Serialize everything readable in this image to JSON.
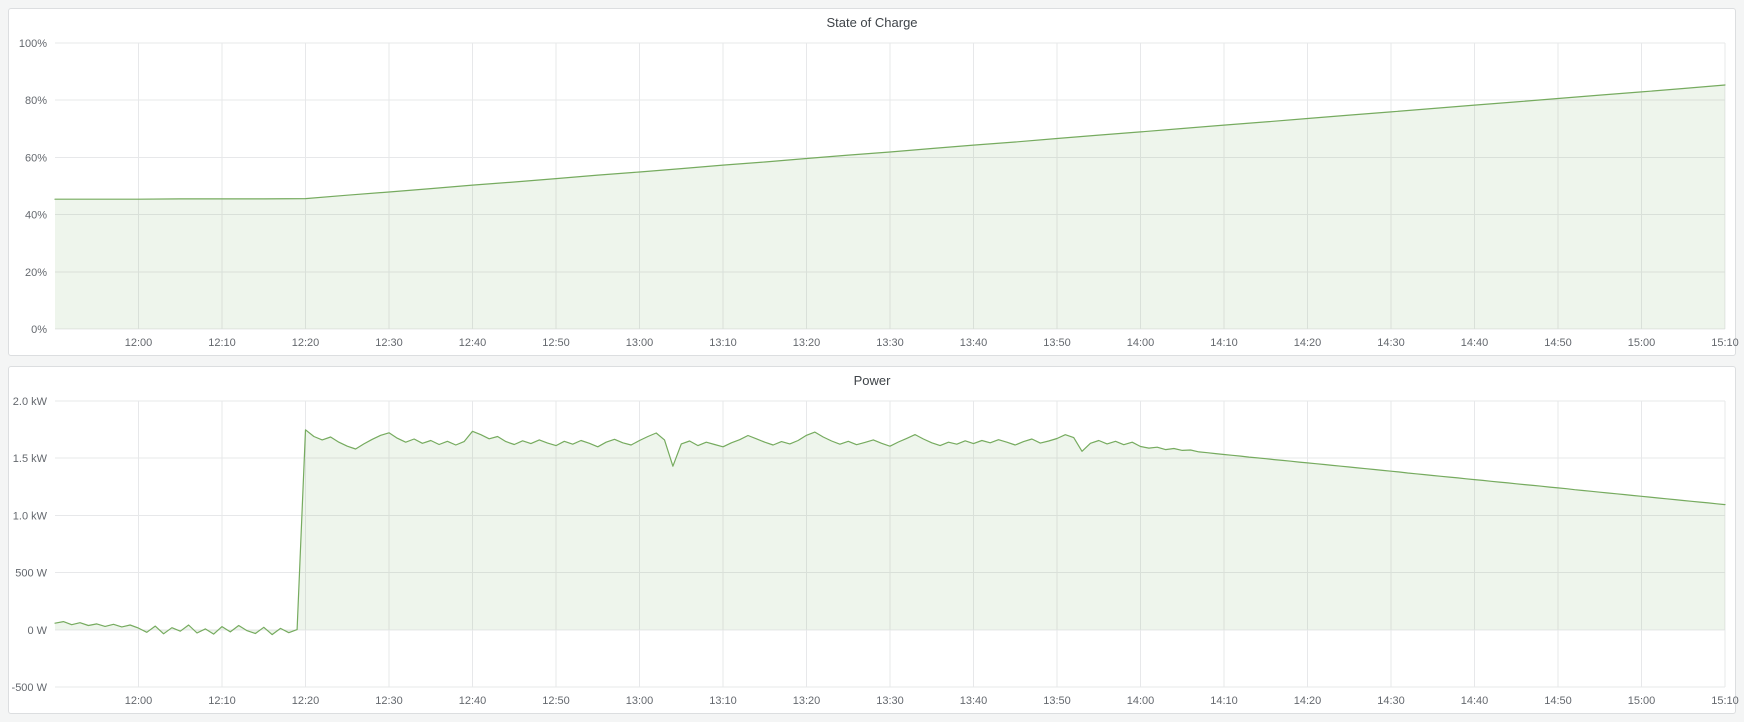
{
  "page": {
    "background_color": "#f4f5f5",
    "panel_background": "#ffffff",
    "panel_border_color": "#dcdee0"
  },
  "panels": [
    {
      "title": "State of Charge"
    },
    {
      "title": "Power"
    }
  ],
  "chart_data": [
    {
      "type": "area",
      "title": "State of Charge",
      "xlabel": "",
      "ylabel": "",
      "unit": "%",
      "legend": "none",
      "grid": true,
      "ylim": [
        0,
        100
      ],
      "y_ticks": [
        {
          "value": 0,
          "label": "0%"
        },
        {
          "value": 20,
          "label": "20%"
        },
        {
          "value": 40,
          "label": "40%"
        },
        {
          "value": 60,
          "label": "60%"
        },
        {
          "value": 80,
          "label": "80%"
        },
        {
          "value": 100,
          "label": "100%"
        }
      ],
      "x_start": "11:50",
      "x_end": "15:10",
      "x_span_minutes": 200,
      "x_step_minutes": 5,
      "x_tick_first_min": 10,
      "x_tick_interval_min": 10,
      "x_tick_labels": [
        "12:00",
        "12:10",
        "12:20",
        "12:30",
        "12:40",
        "12:50",
        "13:00",
        "13:10",
        "13:20",
        "13:30",
        "13:40",
        "13:50",
        "14:00",
        "14:10",
        "14:20",
        "14:30",
        "14:40",
        "14:50",
        "15:00",
        "15:10"
      ],
      "values": [
        45.4,
        45.4,
        45.4,
        45.5,
        45.5,
        45.5,
        45.6,
        46.8,
        47.9,
        49.1,
        50.3,
        51.4,
        52.6,
        53.8,
        54.9,
        56.1,
        57.3,
        58.4,
        59.6,
        60.8,
        61.9,
        63.1,
        64.3,
        65.4,
        66.6,
        67.8,
        68.9,
        70.1,
        71.3,
        72.4,
        73.6,
        74.8,
        75.9,
        77.1,
        78.3,
        79.4,
        80.6,
        81.8,
        82.9,
        84.1,
        85.3
      ],
      "line_color": "#76ab5f",
      "fill_color": "rgba(118,171,95,0.12)",
      "grid_color": "#e7e8ea",
      "axis_text_color": "#64686e"
    },
    {
      "type": "area",
      "title": "Power",
      "xlabel": "",
      "ylabel": "",
      "unit": "W",
      "legend": "none",
      "grid": true,
      "ylim": [
        -500,
        2000
      ],
      "y_ticks": [
        {
          "value": -500,
          "label": "-500 W"
        },
        {
          "value": 0,
          "label": "0 W"
        },
        {
          "value": 500,
          "label": "500 W"
        },
        {
          "value": 1000,
          "label": "1.0 kW"
        },
        {
          "value": 1500,
          "label": "1.5 kW"
        },
        {
          "value": 2000,
          "label": "2.0 kW"
        }
      ],
      "x_start": "11:50",
      "x_end": "15:10",
      "x_span_minutes": 200,
      "x_step_minutes": 1,
      "x_tick_first_min": 10,
      "x_tick_interval_min": 10,
      "x_tick_labels": [
        "12:00",
        "12:10",
        "12:20",
        "12:30",
        "12:40",
        "12:50",
        "13:00",
        "13:10",
        "13:20",
        "13:30",
        "13:40",
        "13:50",
        "14:00",
        "14:10",
        "14:20",
        "14:30",
        "14:40",
        "14:50",
        "15:00",
        "15:10"
      ],
      "values": [
        58,
        72,
        45,
        62,
        38,
        52,
        30,
        48,
        25,
        42,
        15,
        -22,
        32,
        -35,
        18,
        -12,
        42,
        -28,
        8,
        -38,
        28,
        -18,
        38,
        -8,
        -32,
        22,
        -42,
        12,
        -25,
        2,
        1748,
        1690,
        1660,
        1685,
        1640,
        1605,
        1580,
        1625,
        1665,
        1700,
        1722,
        1675,
        1640,
        1668,
        1630,
        1655,
        1620,
        1648,
        1615,
        1645,
        1735,
        1705,
        1670,
        1690,
        1645,
        1620,
        1652,
        1628,
        1660,
        1632,
        1610,
        1648,
        1622,
        1655,
        1630,
        1600,
        1640,
        1665,
        1635,
        1615,
        1655,
        1690,
        1720,
        1660,
        1430,
        1625,
        1650,
        1610,
        1640,
        1620,
        1600,
        1635,
        1662,
        1698,
        1670,
        1640,
        1615,
        1645,
        1625,
        1655,
        1700,
        1728,
        1685,
        1650,
        1622,
        1648,
        1618,
        1638,
        1660,
        1630,
        1605,
        1642,
        1673,
        1706,
        1668,
        1635,
        1610,
        1640,
        1622,
        1652,
        1628,
        1655,
        1635,
        1662,
        1640,
        1615,
        1645,
        1668,
        1632,
        1650,
        1672,
        1705,
        1680,
        1560,
        1630,
        1655,
        1625,
        1648,
        1618,
        1640,
        1602,
        1588,
        1596,
        1575,
        1585,
        1568,
        1572,
        1555,
        1548,
        1540,
        1532,
        1525,
        1518,
        1510,
        1503,
        1496,
        1488,
        1481,
        1474,
        1466,
        1459,
        1452,
        1445,
        1437,
        1430,
        1423,
        1415,
        1408,
        1401,
        1393,
        1386,
        1379,
        1371,
        1364,
        1357,
        1349,
        1342,
        1335,
        1328,
        1320,
        1313,
        1306,
        1298,
        1291,
        1284,
        1276,
        1269,
        1262,
        1255,
        1247,
        1240,
        1233,
        1225,
        1218,
        1211,
        1203,
        1196,
        1189,
        1182,
        1174,
        1167,
        1160,
        1152,
        1145,
        1138,
        1130,
        1123,
        1116,
        1109,
        1101,
        1094
      ],
      "line_color": "#76ab5f",
      "fill_color": "rgba(118,171,95,0.12)",
      "grid_color": "#e7e8ea",
      "axis_text_color": "#64686e"
    }
  ]
}
